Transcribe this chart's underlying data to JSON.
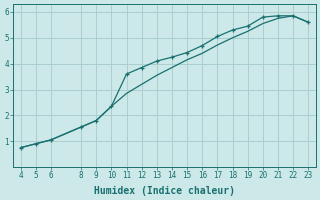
{
  "xlabel": "Humidex (Indice chaleur)",
  "ylabel": "",
  "bg_color": "#cce8e8",
  "grid_color": "#aacfcf",
  "line_color": "#1a7070",
  "x_upper": [
    4,
    5,
    6,
    8,
    9,
    10,
    11,
    12,
    13,
    14,
    15,
    16,
    17,
    18,
    19,
    20,
    21,
    22,
    23
  ],
  "y_upper": [
    0.75,
    0.9,
    1.05,
    1.55,
    1.8,
    2.35,
    3.6,
    3.85,
    4.1,
    4.25,
    4.43,
    4.7,
    5.05,
    5.3,
    5.45,
    5.8,
    5.85,
    5.85,
    5.6
  ],
  "x_lower": [
    4,
    5,
    6,
    8,
    9,
    10,
    11,
    12,
    13,
    14,
    15,
    16,
    17,
    18,
    19,
    20,
    21,
    22,
    23
  ],
  "y_lower": [
    0.75,
    0.9,
    1.05,
    1.55,
    1.8,
    2.35,
    2.85,
    3.2,
    3.55,
    3.85,
    4.15,
    4.4,
    4.72,
    5.0,
    5.25,
    5.55,
    5.75,
    5.85,
    5.6
  ],
  "xlim": [
    3.5,
    23.5
  ],
  "ylim": [
    0,
    6.3
  ],
  "xticks": [
    4,
    5,
    6,
    8,
    9,
    10,
    11,
    12,
    13,
    14,
    15,
    16,
    17,
    18,
    19,
    20,
    21,
    22,
    23
  ],
  "yticks": [
    1,
    2,
    3,
    4,
    5,
    6
  ],
  "tick_label_fontsize": 5.5,
  "xlabel_fontsize": 7.0,
  "axis_color": "#1a7070"
}
